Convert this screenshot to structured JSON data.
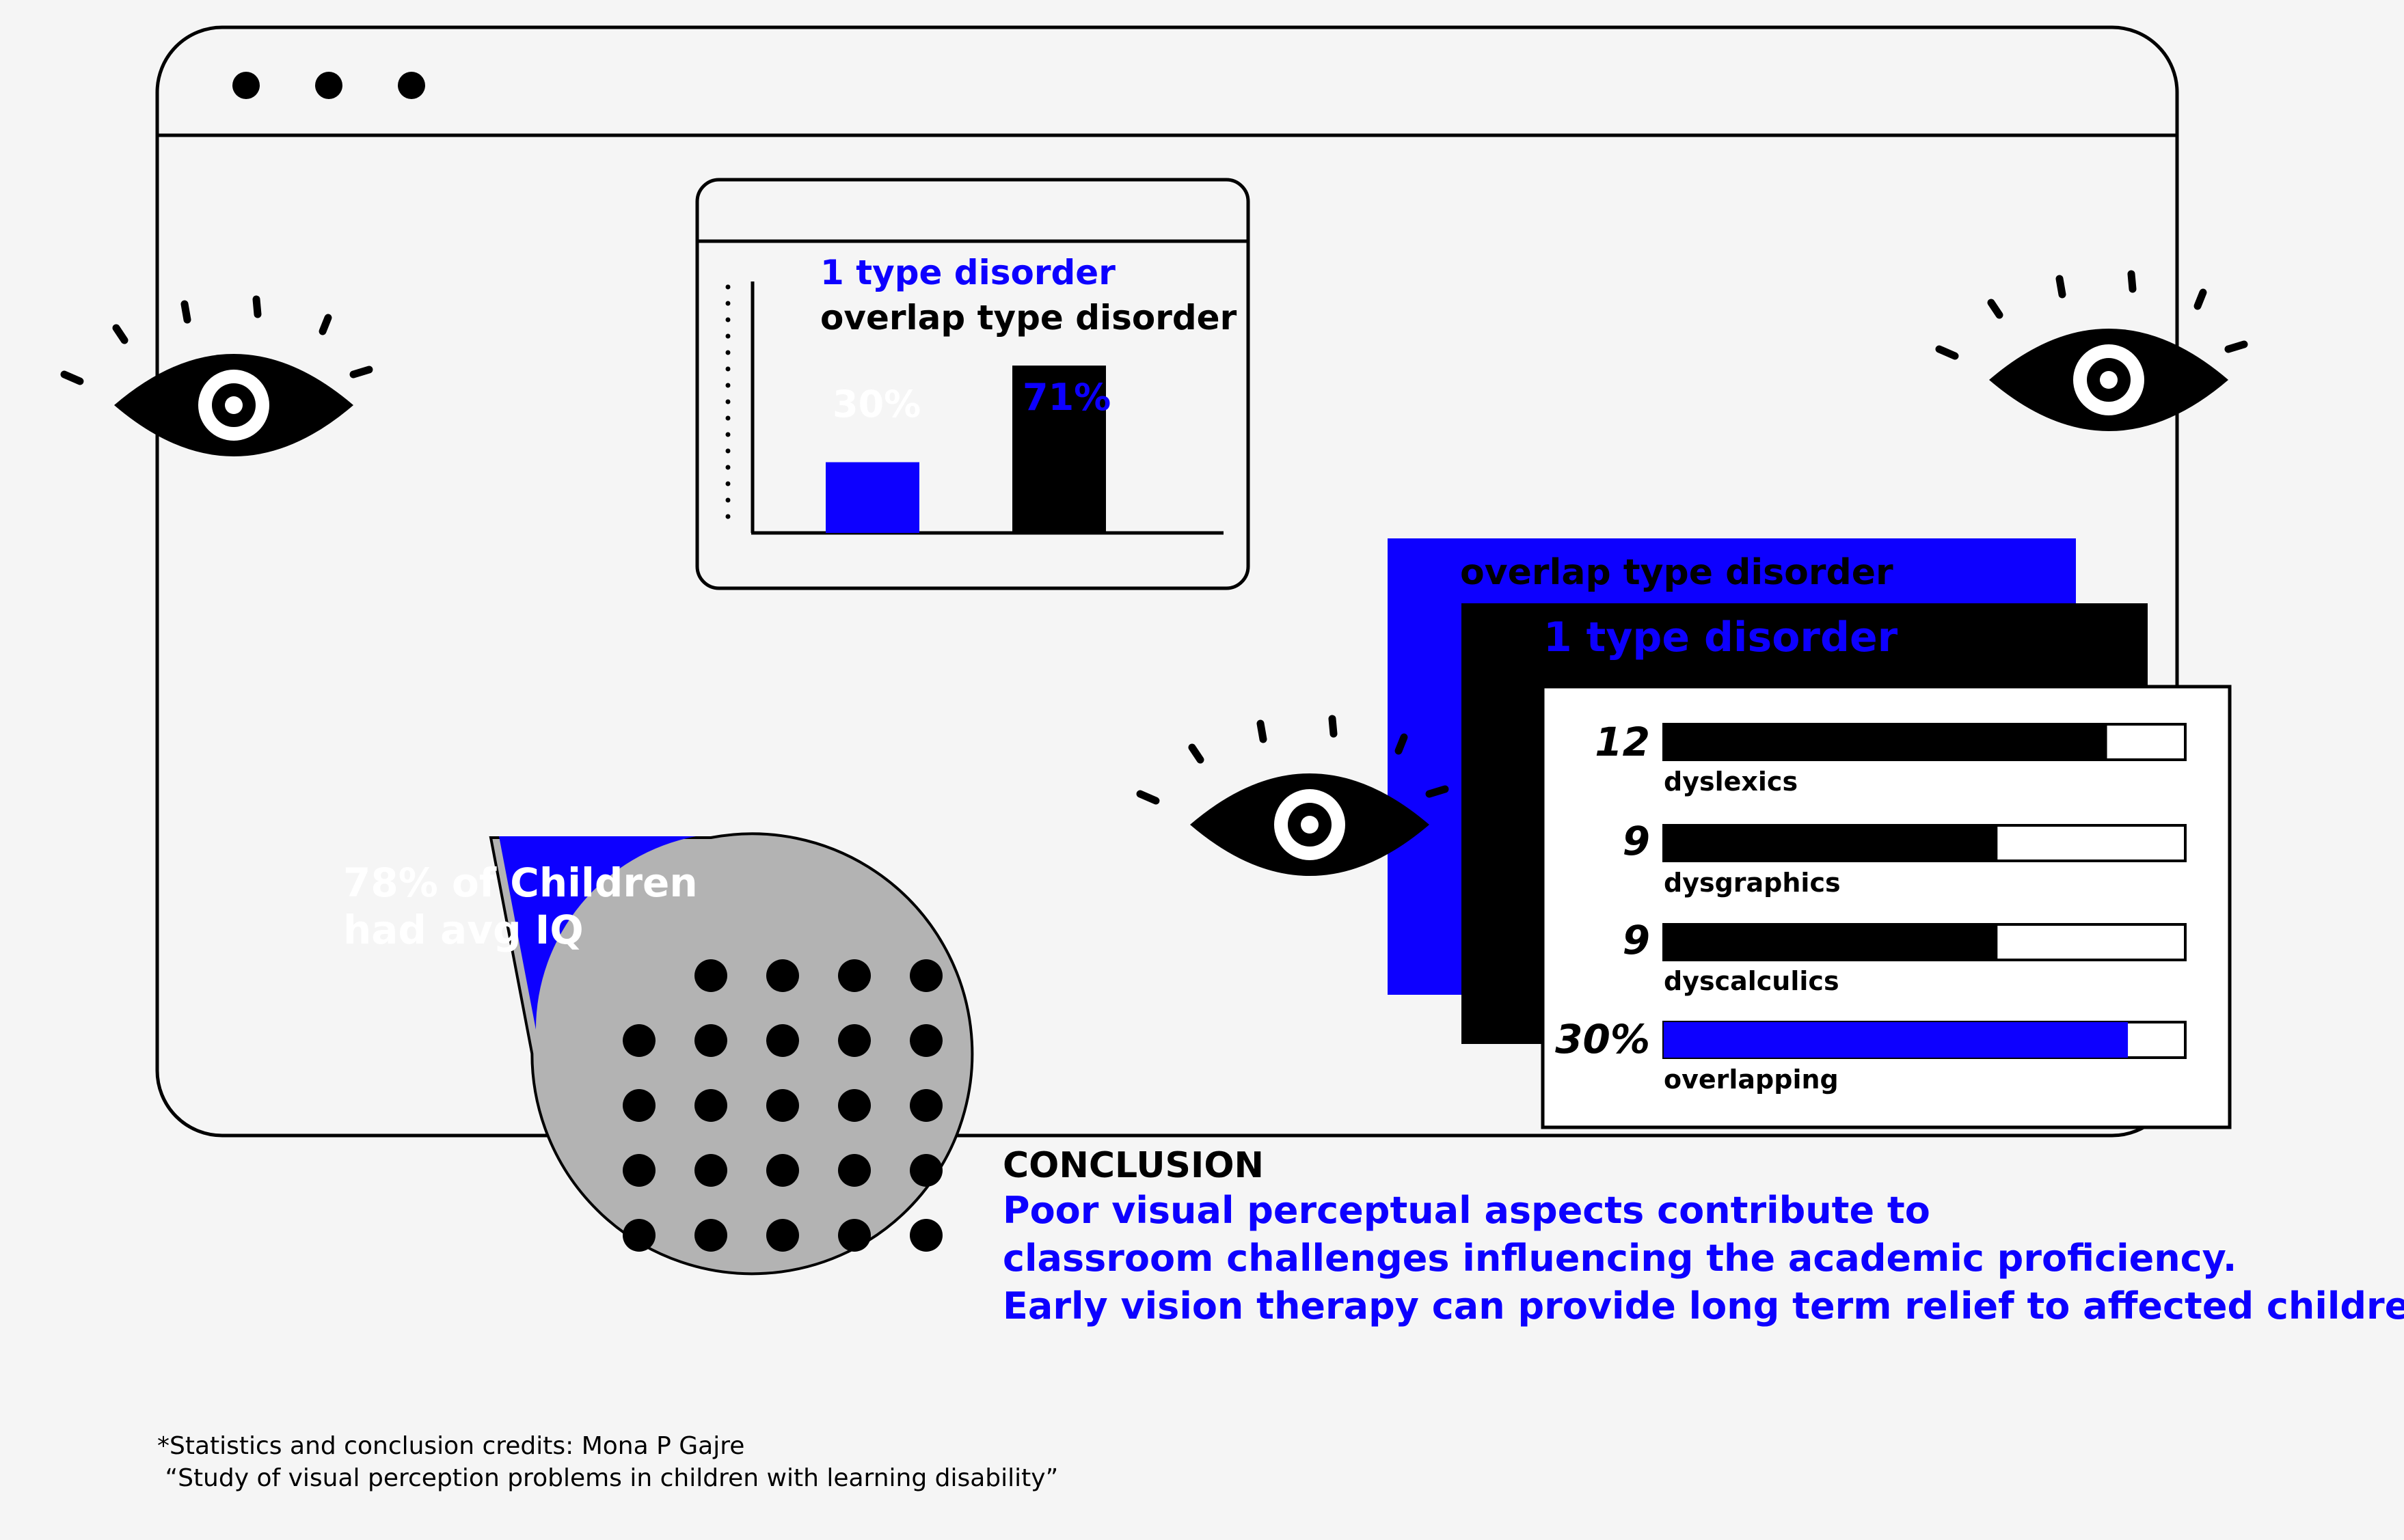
{
  "colors": {
    "accent": "#0d00ff",
    "ink": "#000000",
    "pie_gray": "#b3b3b3",
    "background": "#f5f5f5"
  },
  "window_dots": 3,
  "bar_chart": {
    "legend_1": "1 type disorder",
    "legend_2": "overlap type disorder",
    "bars": [
      {
        "label": "30%",
        "value": 30,
        "color": "#0d00ff"
      },
      {
        "label": "71%",
        "value": 71,
        "color": "#000000"
      }
    ]
  },
  "pie": {
    "label_line1": "78% of Children",
    "label_line2": "had avg IQ",
    "slices": [
      {
        "value": 78,
        "color": "#b3b3b3"
      },
      {
        "value": 22,
        "color": "#0d00ff"
      }
    ]
  },
  "stack": {
    "back_title": "overlap type disorder",
    "mid_title": "1 type disorder",
    "rows": [
      {
        "number": "12",
        "label": "dyslexics",
        "fill": 0.85,
        "color": "#000000"
      },
      {
        "number": "9",
        "label": "dysgraphics",
        "fill": 0.64,
        "color": "#000000"
      },
      {
        "number": "9",
        "label": "dyscalculics",
        "fill": 0.64,
        "color": "#000000"
      },
      {
        "number": "30%",
        "label": "overlapping",
        "fill": 0.89,
        "color": "#0d00ff"
      }
    ]
  },
  "conclusion": {
    "heading": "CONCLUSION",
    "line1": "Poor visual perceptual aspects contribute to",
    "line2": "classroom challenges influencing the academic proficiency.",
    "line3": "Early vision therapy can provide long term relief to affected children."
  },
  "credits": {
    "line1": "*Statistics and conclusion credits: Mona P Gajre",
    "line2": " “Study of visual perception problems in children with learning disability”"
  },
  "icons": [
    "eye-icon",
    "eye-icon",
    "eye-icon",
    "dot-grid"
  ]
}
